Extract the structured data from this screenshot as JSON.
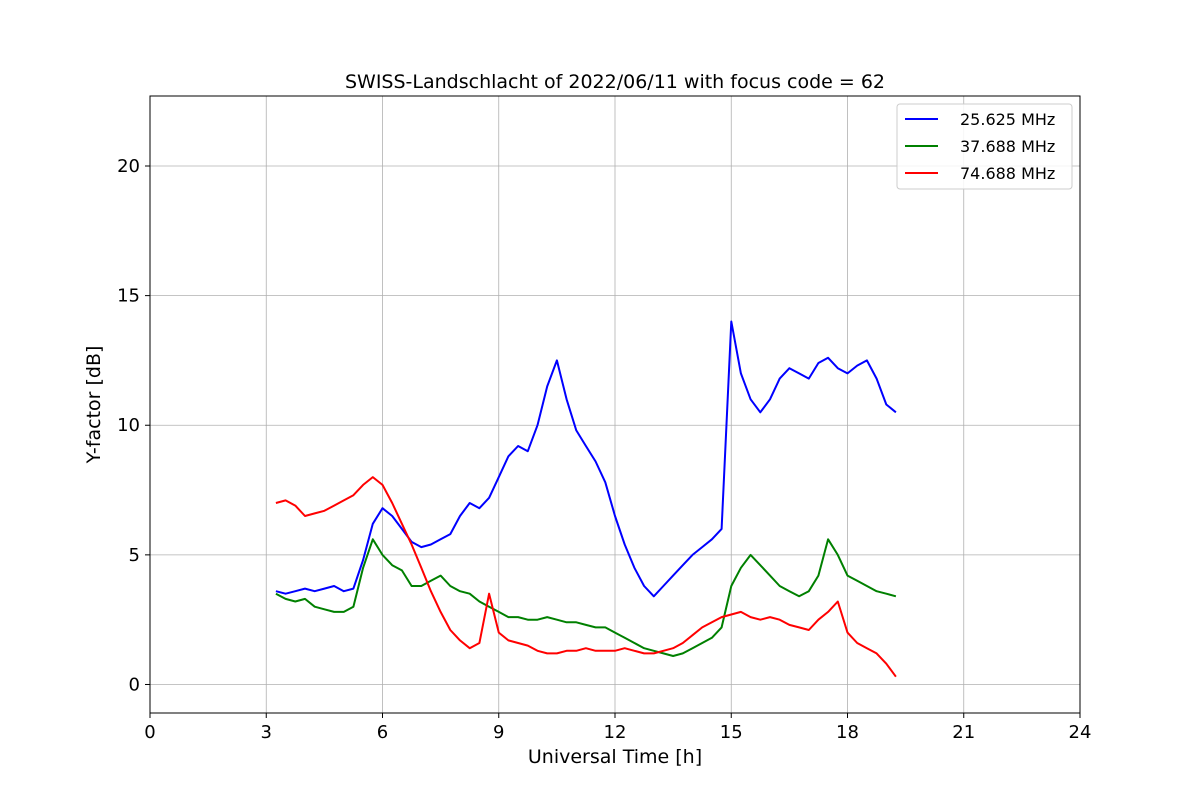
{
  "chart_data": {
    "type": "line",
    "title": "SWISS-Landschlacht of 2022/06/11 with focus code = 62",
    "xlabel": "Universal Time [h]",
    "ylabel": "Y-factor [dB]",
    "xlim": [
      0,
      24
    ],
    "ylim": [
      -1.1,
      22.7
    ],
    "xticks": [
      0,
      3,
      6,
      9,
      12,
      15,
      18,
      21,
      24
    ],
    "xtick_labels": [
      "0",
      "3",
      "6",
      "9",
      "12",
      "15",
      "18",
      "21",
      "24"
    ],
    "yticks": [
      0,
      5,
      10,
      15,
      20
    ],
    "ytick_labels": [
      "0",
      "5",
      "10",
      "15",
      "20"
    ],
    "grid": true,
    "legend_position": "top-right",
    "series": [
      {
        "name": "25.625 MHz",
        "color": "#0000ff",
        "x": [
          3.25,
          3.5,
          3.75,
          4.0,
          4.25,
          4.5,
          4.75,
          5.0,
          5.25,
          5.5,
          5.75,
          6.0,
          6.25,
          6.5,
          6.75,
          7.0,
          7.25,
          7.5,
          7.75,
          8.0,
          8.25,
          8.5,
          8.75,
          9.0,
          9.25,
          9.5,
          9.75,
          10.0,
          10.25,
          10.5,
          10.75,
          11.0,
          11.25,
          11.5,
          11.75,
          12.0,
          12.25,
          12.5,
          12.75,
          13.0,
          13.25,
          13.5,
          13.75,
          14.0,
          14.25,
          14.5,
          14.75,
          15.0,
          15.25,
          15.5,
          15.75,
          16.0,
          16.25,
          16.5,
          16.75,
          17.0,
          17.25,
          17.5,
          17.75,
          18.0,
          18.25,
          18.5,
          18.75,
          19.0,
          19.25
        ],
        "y": [
          3.6,
          3.5,
          3.6,
          3.7,
          3.6,
          3.7,
          3.8,
          3.6,
          3.7,
          4.8,
          6.2,
          6.8,
          6.5,
          6.0,
          5.5,
          5.3,
          5.4,
          5.6,
          5.8,
          6.5,
          7.0,
          6.8,
          7.2,
          8.0,
          8.8,
          9.2,
          9.0,
          10.0,
          11.5,
          12.5,
          11.0,
          9.8,
          9.2,
          8.6,
          7.8,
          6.5,
          5.4,
          4.5,
          3.8,
          3.4,
          3.8,
          4.2,
          4.6,
          5.0,
          5.3,
          5.6,
          6.0,
          14.0,
          12.0,
          11.0,
          10.5,
          11.0,
          11.8,
          12.2,
          12.0,
          11.8,
          12.4,
          12.6,
          12.2,
          12.0,
          12.3,
          12.5,
          11.8,
          10.8,
          10.5
        ]
      },
      {
        "name": "37.688 MHz",
        "color": "#008000",
        "x": [
          3.25,
          3.5,
          3.75,
          4.0,
          4.25,
          4.5,
          4.75,
          5.0,
          5.25,
          5.5,
          5.75,
          6.0,
          6.25,
          6.5,
          6.75,
          7.0,
          7.25,
          7.5,
          7.75,
          8.0,
          8.25,
          8.5,
          8.75,
          9.0,
          9.25,
          9.5,
          9.75,
          10.0,
          10.25,
          10.5,
          10.75,
          11.0,
          11.25,
          11.5,
          11.75,
          12.0,
          12.25,
          12.5,
          12.75,
          13.0,
          13.25,
          13.5,
          13.75,
          14.0,
          14.25,
          14.5,
          14.75,
          15.0,
          15.25,
          15.5,
          15.75,
          16.0,
          16.25,
          16.5,
          16.75,
          17.0,
          17.25,
          17.5,
          17.75,
          18.0,
          18.25,
          18.5,
          18.75,
          19.0,
          19.25
        ],
        "y": [
          3.5,
          3.3,
          3.2,
          3.3,
          3.0,
          2.9,
          2.8,
          2.8,
          3.0,
          4.5,
          5.6,
          5.0,
          4.6,
          4.4,
          3.8,
          3.8,
          4.0,
          4.2,
          3.8,
          3.6,
          3.5,
          3.2,
          3.0,
          2.8,
          2.6,
          2.6,
          2.5,
          2.5,
          2.6,
          2.5,
          2.4,
          2.4,
          2.3,
          2.2,
          2.2,
          2.0,
          1.8,
          1.6,
          1.4,
          1.3,
          1.2,
          1.1,
          1.2,
          1.4,
          1.6,
          1.8,
          2.2,
          3.8,
          4.5,
          5.0,
          4.6,
          4.2,
          3.8,
          3.6,
          3.4,
          3.6,
          4.2,
          5.6,
          5.0,
          4.2,
          4.0,
          3.8,
          3.6,
          3.5,
          3.4
        ]
      },
      {
        "name": "74.688 MHz",
        "color": "#ff0000",
        "x": [
          3.25,
          3.5,
          3.75,
          4.0,
          4.25,
          4.5,
          4.75,
          5.0,
          5.25,
          5.5,
          5.75,
          6.0,
          6.25,
          6.5,
          6.75,
          7.0,
          7.25,
          7.5,
          7.75,
          8.0,
          8.25,
          8.5,
          8.75,
          9.0,
          9.25,
          9.5,
          9.75,
          10.0,
          10.25,
          10.5,
          10.75,
          11.0,
          11.25,
          11.5,
          11.75,
          12.0,
          12.25,
          12.5,
          12.75,
          13.0,
          13.25,
          13.5,
          13.75,
          14.0,
          14.25,
          14.5,
          14.75,
          15.0,
          15.25,
          15.5,
          15.75,
          16.0,
          16.25,
          16.5,
          16.75,
          17.0,
          17.25,
          17.5,
          17.75,
          18.0,
          18.25,
          18.5,
          18.75,
          19.0,
          19.25
        ],
        "y": [
          7.0,
          7.1,
          6.9,
          6.5,
          6.6,
          6.7,
          6.9,
          7.1,
          7.3,
          7.7,
          8.0,
          7.7,
          7.0,
          6.2,
          5.4,
          4.5,
          3.6,
          2.8,
          2.1,
          1.7,
          1.4,
          1.6,
          3.5,
          2.0,
          1.7,
          1.6,
          1.5,
          1.3,
          1.2,
          1.2,
          1.3,
          1.3,
          1.4,
          1.3,
          1.3,
          1.3,
          1.4,
          1.3,
          1.2,
          1.2,
          1.3,
          1.4,
          1.6,
          1.9,
          2.2,
          2.4,
          2.6,
          2.7,
          2.8,
          2.6,
          2.5,
          2.6,
          2.5,
          2.3,
          2.2,
          2.1,
          2.5,
          2.8,
          3.2,
          2.0,
          1.6,
          1.4,
          1.2,
          0.8,
          0.3
        ]
      }
    ]
  }
}
